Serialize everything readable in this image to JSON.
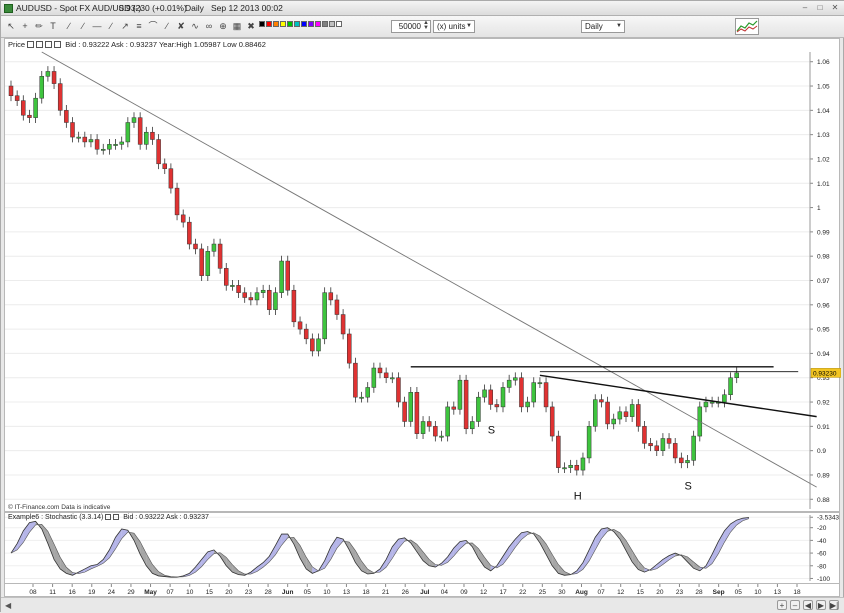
{
  "window": {
    "instrument": "AUDUSD - Spot FX AUD/USD (-)",
    "last_price_change": "0.93230 (+0.01%)",
    "period_label": "Daily",
    "datetime": "Sep 12 2013 00:02"
  },
  "toolbar": {
    "quantity": "50000",
    "units": "(x) units",
    "period": "Daily",
    "swatch_colors": [
      "#000000",
      "#ff0000",
      "#ff8000",
      "#ffff00",
      "#00c000",
      "#00c0c0",
      "#0000ff",
      "#8000ff",
      "#ff00ff",
      "#808080",
      "#c0c0c0",
      "#ffffff"
    ]
  },
  "price_panel": {
    "label": "Price",
    "info": "Bid : 0.93222  Ask : 0.93237  Year:High 1.05987  Low 0.88462",
    "current_price": "0.93230",
    "footnote": "© IT-Finance.com  Data is indicative"
  },
  "stochastic_panel": {
    "label": "Example6 : Stochastic (3.3.14)",
    "info": "Bid : 0.93222  Ask : 0.93237",
    "current_value": "-3.5343"
  },
  "chart_data": [
    {
      "type": "candlestick",
      "title": "AUDUSD - Spot FX AUD/USD (-)",
      "y_ticks": [
        "0.88",
        "0.89",
        "0.9",
        "0.91",
        "0.92",
        "0.93",
        "0.94",
        "0.95",
        "0.96",
        "0.97",
        "0.98",
        "0.99",
        "1",
        "1.01",
        "1.02",
        "1.03",
        "1.04",
        "1.05",
        "1.06"
      ],
      "ylim": [
        0.876,
        1.064
      ],
      "x_ticks": [
        "08",
        "11",
        "16",
        "19",
        "24",
        "29",
        "May",
        "07",
        "10",
        "15",
        "20",
        "23",
        "28",
        "Jun",
        "05",
        "10",
        "13",
        "18",
        "21",
        "26",
        "Jul",
        "04",
        "09",
        "12",
        "17",
        "22",
        "25",
        "30",
        "Aug",
        "07",
        "12",
        "15",
        "20",
        "23",
        "28",
        "Sep",
        "05",
        "10",
        "13",
        "18"
      ],
      "bold_x_ticks": [
        "May",
        "Jun",
        "Jul",
        "Aug",
        "Sep"
      ],
      "closes": [
        1.046,
        1.044,
        1.038,
        1.037,
        1.045,
        1.054,
        1.056,
        1.051,
        1.04,
        1.035,
        1.029,
        1.029,
        1.027,
        1.028,
        1.024,
        1.024,
        1.026,
        1.026,
        1.027,
        1.035,
        1.037,
        1.026,
        1.031,
        1.028,
        1.018,
        1.016,
        1.008,
        0.997,
        0.994,
        0.985,
        0.983,
        0.972,
        0.982,
        0.985,
        0.975,
        0.968,
        0.968,
        0.965,
        0.963,
        0.962,
        0.965,
        0.966,
        0.958,
        0.965,
        0.978,
        0.966,
        0.953,
        0.95,
        0.946,
        0.941,
        0.946,
        0.965,
        0.962,
        0.956,
        0.948,
        0.936,
        0.922,
        0.922,
        0.926,
        0.934,
        0.932,
        0.93,
        0.93,
        0.92,
        0.912,
        0.924,
        0.907,
        0.912,
        0.91,
        0.906,
        0.906,
        0.918,
        0.917,
        0.929,
        0.909,
        0.912,
        0.922,
        0.925,
        0.919,
        0.918,
        0.926,
        0.929,
        0.93,
        0.918,
        0.92,
        0.928,
        0.928,
        0.918,
        0.906,
        0.893,
        0.893,
        0.894,
        0.892,
        0.897,
        0.91,
        0.921,
        0.92,
        0.911,
        0.913,
        0.916,
        0.914,
        0.919,
        0.91,
        0.903,
        0.902,
        0.9,
        0.905,
        0.903,
        0.897,
        0.895,
        0.896,
        0.906,
        0.918,
        0.92,
        0.92,
        0.92,
        0.923,
        0.93,
        0.932
      ],
      "annotations": [
        {
          "text": "S",
          "x_index": 78
        },
        {
          "text": "H",
          "x_index": 92
        },
        {
          "text": "S",
          "x_index": 110
        }
      ],
      "lines": [
        {
          "name": "downtrend",
          "from": {
            "x_index": 5,
            "price": 1.064
          },
          "to": {
            "x_index": 131,
            "price": 0.885
          }
        },
        {
          "name": "neckline",
          "from": {
            "x_index": 86,
            "price": 0.931
          },
          "to": {
            "x_index": 131,
            "price": 0.914
          }
        },
        {
          "name": "resistance-top",
          "from": {
            "x_index": 65,
            "price": 0.9345
          },
          "to": {
            "x_index": 124,
            "price": 0.9345
          }
        },
        {
          "name": "resistance-bottom",
          "from": {
            "x_index": 86,
            "price": 0.9325
          },
          "to": {
            "x_index": 128,
            "price": 0.9325
          }
        }
      ]
    },
    {
      "type": "line",
      "title": "Stochastic (3.3.14)",
      "y_ticks": [
        "-3.5343",
        "-20",
        "-40",
        "-60",
        "-80",
        "-100"
      ],
      "ylim": [
        -104,
        0
      ],
      "series": [
        {
          "name": "%K",
          "values": [
            -60,
            -45,
            -25,
            -12,
            -10,
            -22,
            -45,
            -70,
            -85,
            -92,
            -95,
            -90,
            -85,
            -80,
            -78,
            -70,
            -55,
            -35,
            -22,
            -24,
            -40,
            -62,
            -80,
            -92,
            -96,
            -97,
            -98,
            -98,
            -96,
            -92,
            -82,
            -70,
            -58,
            -55,
            -65,
            -80,
            -90,
            -94,
            -95,
            -90,
            -82,
            -75,
            -65,
            -48,
            -30,
            -30,
            -46,
            -68,
            -85,
            -92,
            -88,
            -72,
            -50,
            -35,
            -38,
            -55,
            -75,
            -88,
            -93,
            -92,
            -85,
            -70,
            -50,
            -38,
            -36,
            -44,
            -58,
            -72,
            -80,
            -82,
            -76,
            -66,
            -52,
            -42,
            -40,
            -50,
            -68,
            -82,
            -88,
            -80,
            -65,
            -50,
            -38,
            -28,
            -26,
            -30,
            -44,
            -62,
            -80,
            -92,
            -95,
            -94,
            -88,
            -75,
            -55,
            -35,
            -22,
            -20,
            -26,
            -38,
            -56,
            -74,
            -86,
            -90,
            -86,
            -78,
            -70,
            -64,
            -60,
            -64,
            -74,
            -84,
            -88,
            -80,
            -62,
            -42,
            -25,
            -14,
            -8,
            -5,
            -4
          ]
        }
      ]
    }
  ],
  "statusbar": {
    "nav_buttons": [
      "zoom-in",
      "zoom-out",
      "back",
      "forward",
      "end"
    ]
  }
}
